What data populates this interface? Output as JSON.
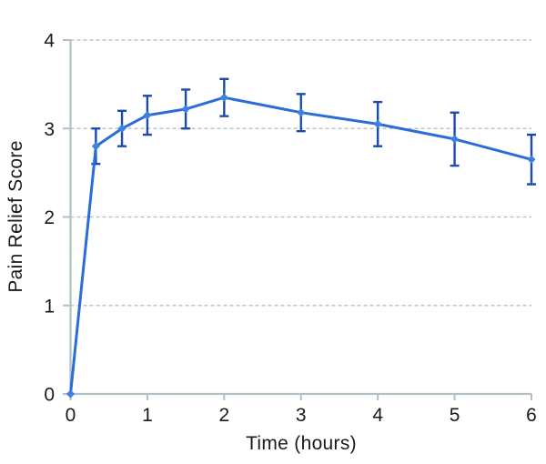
{
  "chart_data": {
    "type": "line",
    "title": "",
    "xlabel": "Time (hours)",
    "ylabel": "Pain Relief Score",
    "x": [
      0,
      0.33,
      0.67,
      1.0,
      1.5,
      2.0,
      3.0,
      4.0,
      5.0,
      6.0
    ],
    "y": [
      0,
      2.8,
      3.0,
      3.15,
      3.22,
      3.35,
      3.18,
      3.05,
      2.88,
      2.65
    ],
    "yerr": [
      0,
      0.2,
      0.2,
      0.22,
      0.22,
      0.21,
      0.21,
      0.25,
      0.3,
      0.28
    ],
    "xlim": [
      0,
      6
    ],
    "ylim": [
      0,
      4
    ],
    "xticks": [
      0,
      1,
      2,
      3,
      4,
      5,
      6
    ],
    "yticks": [
      0,
      1,
      2,
      3,
      4
    ],
    "grid": "horizontal-dashed",
    "legend": "none",
    "marker": "diamond",
    "colors": {
      "line": "#2a6cd9",
      "marker": "#3c80e0",
      "error_bar": "#1c4bae",
      "axis": "#b2bfc4",
      "gridline": "#b9c5c9",
      "text": "#1a1a1a",
      "background": "#ffffff"
    }
  }
}
